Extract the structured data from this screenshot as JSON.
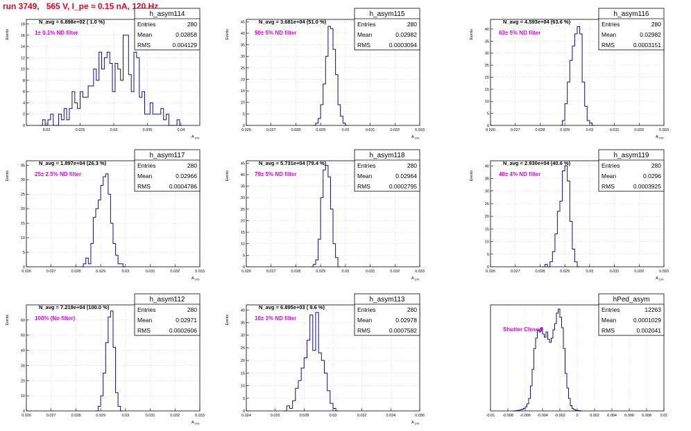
{
  "page": {
    "title": "run 3749,   565 V, I_pe ≈ 0.15 nA, 120 Hz"
  },
  "colors": {
    "hist_line": "#0b0b8a",
    "annotation": "#e400e4",
    "axis": "#000000",
    "grid": "#c8c8c8",
    "title_text": "#e8001c"
  },
  "chart_data": [
    {
      "type": "bar",
      "name": "h_asym114",
      "stats": {
        "Entries": "280",
        "Mean": "0.02858",
        "RMS": "0.004129"
      },
      "navg": "N_avg = 6.898e+02 ( 1.0 %)",
      "filter": "1± 0.1% ND filter",
      "xlabel": "A_UID",
      "ylabel": "Events",
      "xlim": [
        0.017,
        0.0428
      ],
      "ylim": [
        0,
        18.8
      ],
      "xticks": [
        "0.02",
        "0.025",
        "0.03",
        "0.035",
        "0.04"
      ],
      "xtickvals": [
        0.02,
        0.025,
        0.03,
        0.035,
        0.04
      ],
      "yticks": [
        0,
        2,
        4,
        6,
        8,
        10,
        12,
        14,
        16,
        18
      ],
      "bins": {
        "start": 0.019,
        "width": 0.0004,
        "values": [
          0,
          1,
          0,
          1,
          2,
          0,
          0,
          2,
          1,
          3,
          1,
          3,
          6,
          4,
          3,
          6,
          5,
          5,
          7,
          7,
          10,
          8,
          13,
          10,
          12,
          13,
          11,
          6,
          11,
          10,
          8,
          16,
          16,
          9,
          6,
          13,
          12,
          5,
          6,
          2,
          2,
          4,
          2,
          2,
          2,
          3,
          1,
          2,
          0,
          0,
          0,
          1,
          0
        ]
      }
    },
    {
      "type": "bar",
      "name": "h_asym115",
      "stats": {
        "Entries": "280",
        "Mean": "0.02982",
        "RMS": "0.0003094"
      },
      "navg": "N_avg = 3.681e+04 (51.0 %)",
      "filter": "50± 5% ND filter",
      "xlabel": "A_UID",
      "ylabel": "Events",
      "xlim": [
        0.026,
        0.033
      ],
      "ylim": [
        0,
        46
      ],
      "xticks": [
        "0.026",
        "0.027",
        "0.028",
        "0.029",
        "0.03",
        "0.031",
        "0.032",
        "0.033"
      ],
      "xtickvals": [
        0.026,
        0.027,
        0.028,
        0.029,
        0.03,
        0.031,
        0.032,
        0.033
      ],
      "yticks": [
        0,
        5,
        10,
        15,
        20,
        25,
        30,
        35,
        40,
        45
      ],
      "bins": {
        "start": 0.0287,
        "width": 0.0001,
        "values": [
          0,
          1,
          3,
          9,
          18,
          30,
          43,
          42,
          33,
          22,
          9,
          4,
          1,
          0
        ]
      }
    },
    {
      "type": "bar",
      "name": "h_asym116",
      "stats": {
        "Entries": "280",
        "Mean": "0.02982",
        "RMS": "0.0003151"
      },
      "navg": "N_avg = 4.593e+04 (63.6 %)",
      "filter": "63± 5% ND filter",
      "xlabel": "A_UID",
      "ylabel": "Events",
      "xlim": [
        0.026,
        0.033
      ],
      "ylim": [
        0,
        44
      ],
      "xticks": [
        "0.026",
        "0.027",
        "0.028",
        "0.029",
        "0.03",
        "0.031",
        "0.032",
        "0.033"
      ],
      "xtickvals": [
        0.026,
        0.027,
        0.028,
        0.029,
        0.03,
        0.031,
        0.032,
        0.033
      ],
      "yticks": [
        0,
        5,
        10,
        15,
        20,
        25,
        30,
        35,
        40
      ],
      "bins": {
        "start": 0.0288,
        "width": 0.0001,
        "values": [
          0,
          2,
          9,
          18,
          27,
          33,
          38,
          41,
          38,
          18,
          8,
          2,
          1,
          0
        ]
      }
    },
    {
      "type": "bar",
      "name": "h_asym117",
      "stats": {
        "Entries": "280",
        "Mean": "0.02966",
        "RMS": "0.0004786"
      },
      "navg": "N_avg = 1.897e+04 (26.3 %)",
      "filter": "25± 2.5% ND filter",
      "xlabel": "A_UID",
      "ylabel": "Events",
      "xlim": [
        0.026,
        0.033
      ],
      "ylim": [
        0,
        36.5
      ],
      "xticks": [
        "0.026",
        "0.027",
        "0.028",
        "0.029",
        "0.03",
        "0.031",
        "0.032",
        "0.033"
      ],
      "xtickvals": [
        0.026,
        0.027,
        0.028,
        0.029,
        0.03,
        0.031,
        0.032,
        0.033
      ],
      "yticks": [
        0,
        5,
        10,
        15,
        20,
        25,
        30,
        35
      ],
      "bins": {
        "start": 0.0282,
        "width": 0.0001,
        "values": [
          0,
          1,
          3,
          1,
          8,
          17,
          20,
          23,
          28,
          31,
          32,
          25,
          15,
          8,
          4,
          1,
          1,
          0
        ]
      }
    },
    {
      "type": "bar",
      "name": "h_asym118",
      "stats": {
        "Entries": "280",
        "Mean": "0.02964",
        "RMS": "0.0002795"
      },
      "navg": "N_avg = 5.731e+04 (79.4 %)",
      "filter": "79± 5% ND filter",
      "xlabel": "A_UID",
      "ylabel": "Events",
      "xlim": [
        0.026,
        0.033
      ],
      "ylim": [
        0,
        46
      ],
      "xticks": [
        "0.026",
        "0.027",
        "0.028",
        "0.029",
        "0.03",
        "0.031",
        "0.032",
        "0.033"
      ],
      "xtickvals": [
        0.026,
        0.027,
        0.028,
        0.029,
        0.03,
        0.031,
        0.032,
        0.033
      ],
      "yticks": [
        0,
        5,
        10,
        15,
        20,
        25,
        30,
        35,
        40,
        45
      ],
      "bins": {
        "start": 0.0286,
        "width": 0.0001,
        "values": [
          0,
          1,
          3,
          12,
          30,
          42,
          44,
          39,
          25,
          10,
          4,
          0
        ]
      }
    },
    {
      "type": "bar",
      "name": "h_asym119",
      "stats": {
        "Entries": "280",
        "Mean": "0.0296",
        "RMS": "0.0003925"
      },
      "navg": "N_avg = 2.930e+04 (40.6 %)",
      "filter": "40± 4% ND filter",
      "xlabel": "A_UID",
      "ylabel": "Events",
      "xlim": [
        0.026,
        0.033
      ],
      "ylim": [
        0,
        42
      ],
      "xticks": [
        "0.026",
        "0.027",
        "0.028",
        "0.029",
        "0.03",
        "0.031",
        "0.032",
        "0.033"
      ],
      "xtickvals": [
        0.026,
        0.027,
        0.028,
        0.029,
        0.03,
        0.031,
        0.032,
        0.033
      ],
      "yticks": [
        0,
        5,
        10,
        15,
        20,
        25,
        30,
        35,
        40
      ],
      "bins": {
        "start": 0.0281,
        "width": 0.0001,
        "values": [
          0,
          1,
          0,
          2,
          6,
          13,
          22,
          26,
          38,
          40,
          34,
          18,
          7,
          2,
          0
        ]
      }
    },
    {
      "type": "bar",
      "name": "h_asym112",
      "stats": {
        "Entries": "280",
        "Mean": "0.02971",
        "RMS": "0.0002606"
      },
      "navg": "N_avg = 7.219e+04 (100.0 %)",
      "filter": "100% (No filter)",
      "xlabel": "A_UID",
      "ylabel": "Events",
      "xlim": [
        0.026,
        0.033
      ],
      "ylim": [
        0,
        70
      ],
      "xticks": [
        "0.026",
        "0.027",
        "0.028",
        "0.029",
        "0.03",
        "0.031",
        "0.032",
        "0.033"
      ],
      "xtickvals": [
        0.026,
        0.027,
        0.028,
        0.029,
        0.03,
        0.031,
        0.032,
        0.033
      ],
      "yticks": [
        0,
        10,
        20,
        30,
        40,
        50,
        60
      ],
      "bins": {
        "start": 0.0288,
        "width": 0.0001,
        "values": [
          0,
          3,
          10,
          25,
          45,
          62,
          66,
          42,
          12,
          3,
          0
        ]
      }
    },
    {
      "type": "bar",
      "name": "h_asym113",
      "stats": {
        "Entries": "280",
        "Mean": "0.02978",
        "RMS": "0.0007582"
      },
      "navg": "N_avg = 6.895e+03 ( 9.6 %)",
      "filter": "10± 1% ND filter",
      "xlabel": "A_UID",
      "ylabel": "Events",
      "xlim": [
        0.024,
        0.036
      ],
      "ylim": [
        0,
        42
      ],
      "xticks": [
        "0.024",
        "0.026",
        "0.028",
        "0.03",
        "0.032",
        "0.034",
        "0.036"
      ],
      "xtickvals": [
        0.024,
        0.026,
        0.028,
        0.03,
        0.032,
        0.034,
        0.036
      ],
      "yticks": [
        0,
        5,
        10,
        15,
        20,
        25,
        30,
        35,
        40
      ],
      "bins": {
        "start": 0.0266,
        "width": 0.0002,
        "values": [
          0,
          2,
          1,
          4,
          9,
          12,
          17,
          21,
          28,
          38,
          24,
          39,
          23,
          20,
          15,
          8,
          3,
          1,
          0
        ]
      }
    },
    {
      "type": "bar",
      "name": "hPed_asym",
      "stats": {
        "Entries": "12263",
        "Mean": "0.0001029",
        "RMS": "0.002041"
      },
      "navg": "",
      "filter": "Shutter Closed",
      "xlabel": "",
      "ylabel": "",
      "xlim": [
        -0.01,
        0.01
      ],
      "ylim": [
        0,
        510
      ],
      "xticks": [
        "-0.01",
        "-0.008",
        "-0.006",
        "-0.004",
        "-0.002",
        "0",
        "0.002",
        "0.004",
        "0.006",
        "0.008",
        "0.01"
      ],
      "xtickvals": [
        -0.01,
        -0.008,
        -0.006,
        -0.004,
        -0.002,
        0,
        0.002,
        0.004,
        0.006,
        0.008,
        0.01
      ],
      "yticks": [],
      "bins": {
        "start": -0.0074,
        "width": 0.0002,
        "values": [
          0,
          1,
          2,
          3,
          5,
          8,
          12,
          20,
          34,
          60,
          120,
          200,
          300,
          350,
          390,
          380,
          400,
          370,
          355,
          380,
          345,
          330,
          350,
          390,
          420,
          470,
          490,
          450,
          400,
          300,
          180,
          110,
          60,
          25,
          12,
          6,
          3,
          2,
          1,
          0
        ]
      }
    }
  ]
}
